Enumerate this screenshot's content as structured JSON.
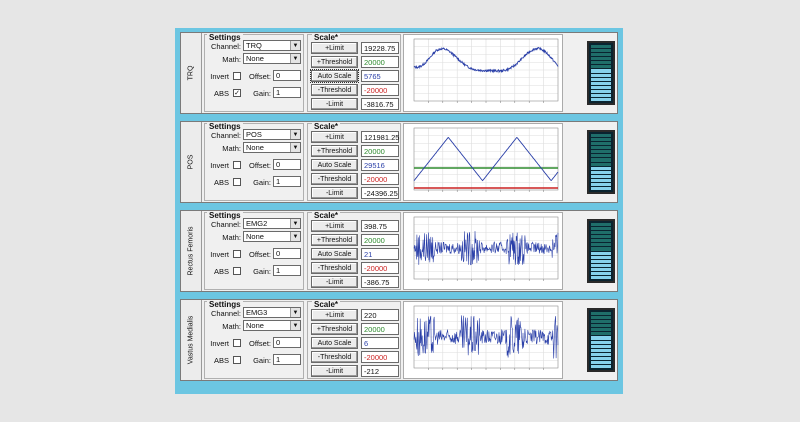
{
  "labels": {
    "settings": "Settings",
    "scale": "Scale*",
    "channel": "Channel:",
    "math": "Math:",
    "invert": "Invert",
    "offset": "Offset:",
    "abs": "ABS",
    "gain": "Gain:",
    "plus_limit": "+Limit",
    "plus_threshold": "+Threshold",
    "auto_scale": "Auto Scale",
    "minus_threshold": "-Threshold",
    "minus_limit": "-Limit"
  },
  "colors": {
    "frame": "#6cc6e2",
    "trace": "#2a3fa8",
    "positive_threshold": "#2e8b2e",
    "negative_threshold": "#cc2222",
    "meter_on": "#86d2ec",
    "meter_dim": "#1f6e6a"
  },
  "panels": [
    {
      "name": "TRQ",
      "channel": "TRQ",
      "math": "None",
      "invert": false,
      "offset": "0",
      "abs": true,
      "gain": "1",
      "plus_limit": "19228.75",
      "plus_threshold": "20000",
      "auto_scale": "5765",
      "minus_threshold": "-20000",
      "minus_limit": "-3816.75",
      "auto_selected": true,
      "meter_level": 0.55
    },
    {
      "name": "POS",
      "channel": "POS",
      "math": "None",
      "invert": false,
      "offset": "0",
      "abs": false,
      "gain": "1",
      "plus_limit": "121981.25",
      "plus_threshold": "20000",
      "auto_scale": "29516",
      "minus_threshold": "-20000",
      "minus_limit": "-24396.25",
      "auto_selected": false,
      "meter_level": 0.4
    },
    {
      "name": "Rectus Femoris",
      "channel": "EMG2",
      "math": "None",
      "invert": false,
      "offset": "0",
      "abs": false,
      "gain": "1",
      "plus_limit": "398.75",
      "plus_threshold": "20000",
      "auto_scale": "21",
      "minus_threshold": "-20000",
      "minus_limit": "-386.75",
      "auto_selected": false,
      "meter_level": 0.5
    },
    {
      "name": "Vastus Medialis",
      "channel": "EMG3",
      "math": "None",
      "invert": false,
      "offset": "0",
      "abs": false,
      "gain": "1",
      "plus_limit": "220",
      "plus_threshold": "20000",
      "auto_scale": "6",
      "minus_threshold": "-20000",
      "minus_limit": "-212",
      "auto_selected": false,
      "meter_level": 0.55
    }
  ]
}
